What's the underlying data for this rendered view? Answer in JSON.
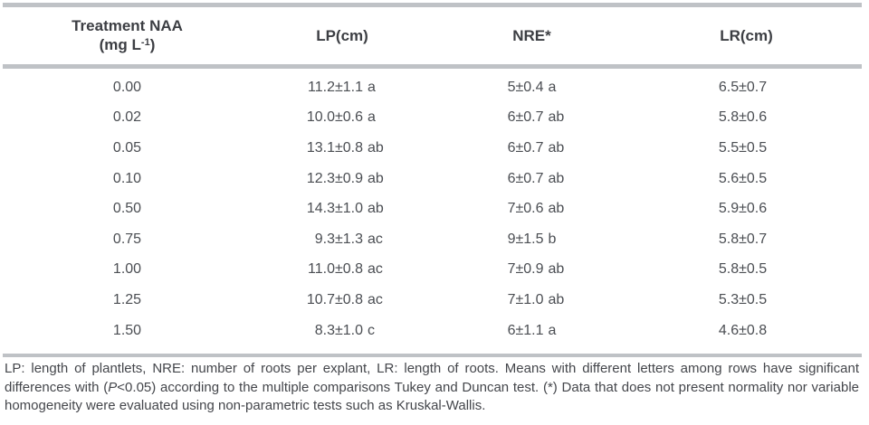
{
  "table": {
    "header": {
      "treatment_line1": "Treatment NAA",
      "treatment_unit_pre": "(mg L",
      "treatment_unit_sup": "-1",
      "treatment_unit_post": ")",
      "lp": "LP(cm)",
      "nre": "NRE*",
      "lr": "LR(cm)"
    },
    "rows": [
      {
        "treatment": "0.00",
        "lp_value": "11.2±1.1",
        "lp_letters": "a",
        "nre_value": "5±0.4",
        "nre_letters": "a",
        "lr_value": "6.5±0.7"
      },
      {
        "treatment": "0.02",
        "lp_value": "10.0±0.6",
        "lp_letters": "a",
        "nre_value": "6±0.7",
        "nre_letters": "ab",
        "lr_value": "5.8±0.6"
      },
      {
        "treatment": "0.05",
        "lp_value": "13.1±0.8",
        "lp_letters": "ab",
        "nre_value": "6±0.7",
        "nre_letters": "ab",
        "lr_value": "5.5±0.5"
      },
      {
        "treatment": "0.10",
        "lp_value": "12.3±0.9",
        "lp_letters": "ab",
        "nre_value": "6±0.7",
        "nre_letters": "ab",
        "lr_value": "5.6±0.5"
      },
      {
        "treatment": "0.50",
        "lp_value": "14.3±1.0",
        "lp_letters": "ab",
        "nre_value": "7±0.6",
        "nre_letters": "ab",
        "lr_value": "5.9±0.6"
      },
      {
        "treatment": "0.75",
        "lp_value": "9.3±1.3",
        "lp_letters": "ac",
        "nre_value": "9±1.5",
        "nre_letters": "b",
        "lr_value": "5.8±0.7"
      },
      {
        "treatment": "1.00",
        "lp_value": "11.0±0.8",
        "lp_letters": "ac",
        "nre_value": "7±0.9",
        "nre_letters": "ab",
        "lr_value": "5.8±0.5"
      },
      {
        "treatment": "1.25",
        "lp_value": "10.7±0.8",
        "lp_letters": "ac",
        "nre_value": "7±1.0",
        "nre_letters": "ab",
        "lr_value": "5.3±0.5"
      },
      {
        "treatment": "1.50",
        "lp_value": "8.3±1.0",
        "lp_letters": "c",
        "nre_value": "6±1.1",
        "nre_letters": "a",
        "lr_value": "4.6±0.8"
      }
    ]
  },
  "footnote": {
    "line1": "LP: length of plantlets, NRE: number of roots per explant, LR: length of roots. Means with different letters among rows have significant",
    "line2_pre": "differences with (",
    "line2_italic": "P",
    "line2_post": "<0.05) according to the multiple comparisons Tukey and Duncan test. (*) Data that does not present normality nor variable",
    "line3": "homogeneity were evaluated using non-parametric tests such as Kruskal-Wallis."
  },
  "colors": {
    "rule": "#bfc2c6",
    "header_text": "#3c3e43",
    "body_text": "#4b4e53",
    "footnote_text": "#44464b",
    "background": "#ffffff"
  }
}
